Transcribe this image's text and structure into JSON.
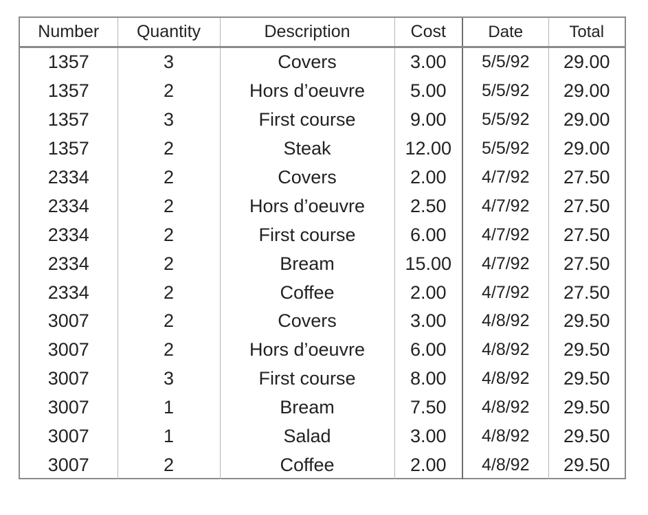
{
  "table": {
    "headers": {
      "number": "Number",
      "quantity": "Quantity",
      "description": "Description",
      "cost": "Cost",
      "date": "Date",
      "total": "Total"
    },
    "rows": [
      {
        "number": "1357",
        "quantity": "3",
        "description": "Covers",
        "cost": "3.00",
        "date": "5/5/92",
        "total": "29.00"
      },
      {
        "number": "1357",
        "quantity": "2",
        "description": "Hors d’oeuvre",
        "cost": "5.00",
        "date": "5/5/92",
        "total": "29.00"
      },
      {
        "number": "1357",
        "quantity": "3",
        "description": "First course",
        "cost": "9.00",
        "date": "5/5/92",
        "total": "29.00"
      },
      {
        "number": "1357",
        "quantity": "2",
        "description": "Steak",
        "cost": "12.00",
        "date": "5/5/92",
        "total": "29.00"
      },
      {
        "number": "2334",
        "quantity": "2",
        "description": "Covers",
        "cost": "2.00",
        "date": "4/7/92",
        "total": "27.50"
      },
      {
        "number": "2334",
        "quantity": "2",
        "description": "Hors d’oeuvre",
        "cost": "2.50",
        "date": "4/7/92",
        "total": "27.50"
      },
      {
        "number": "2334",
        "quantity": "2",
        "description": "First course",
        "cost": "6.00",
        "date": "4/7/92",
        "total": "27.50"
      },
      {
        "number": "2334",
        "quantity": "2",
        "description": "Bream",
        "cost": "15.00",
        "date": "4/7/92",
        "total": "27.50"
      },
      {
        "number": "2334",
        "quantity": "2",
        "description": "Coffee",
        "cost": "2.00",
        "date": "4/7/92",
        "total": "27.50"
      },
      {
        "number": "3007",
        "quantity": "2",
        "description": "Covers",
        "cost": "3.00",
        "date": "4/8/92",
        "total": "29.50"
      },
      {
        "number": "3007",
        "quantity": "2",
        "description": "Hors d’oeuvre",
        "cost": "6.00",
        "date": "4/8/92",
        "total": "29.50"
      },
      {
        "number": "3007",
        "quantity": "3",
        "description": "First course",
        "cost": "8.00",
        "date": "4/8/92",
        "total": "29.50"
      },
      {
        "number": "3007",
        "quantity": "1",
        "description": "Bream",
        "cost": "7.50",
        "date": "4/8/92",
        "total": "29.50"
      },
      {
        "number": "3007",
        "quantity": "1",
        "description": "Salad",
        "cost": "3.00",
        "date": "4/8/92",
        "total": "29.50"
      },
      {
        "number": "3007",
        "quantity": "2",
        "description": "Coffee",
        "cost": "2.00",
        "date": "4/8/92",
        "total": "29.50"
      }
    ]
  }
}
